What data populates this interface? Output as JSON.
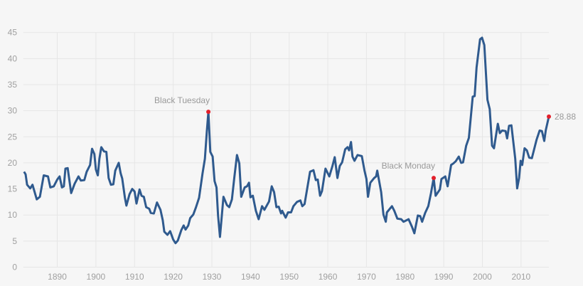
{
  "chart_data": {
    "type": "line",
    "title": "",
    "xlabel": "",
    "ylabel": "",
    "xlim": [
      1881.2,
      2017.2
    ],
    "ylim": [
      0,
      45
    ],
    "grid": true,
    "legend": "none",
    "x_ticks": [
      1890,
      1900,
      1910,
      1920,
      1930,
      1940,
      1950,
      1960,
      1970,
      1980,
      1990,
      2000,
      2010
    ],
    "y_ticks": [
      0,
      5,
      10,
      15,
      20,
      25,
      30,
      35,
      40,
      45
    ],
    "line_color": "#2f5a8e",
    "marker_color": "#e3202b",
    "series": [
      {
        "x": [
          1881.4,
          1881.8,
          1882.2,
          1883,
          1883.6,
          1884.7,
          1885.5,
          1886.5,
          1887.6,
          1888.2,
          1889.1,
          1890,
          1890.6,
          1891.2,
          1891.7,
          1892.1,
          1892.7,
          1893.6,
          1894.5,
          1895.5,
          1896.1,
          1897,
          1897.6,
          1898.5,
          1899,
          1899.6,
          1900,
          1900.5,
          1900.9,
          1901.4,
          1902.1,
          1902.7,
          1903.3,
          1903.9,
          1904.5,
          1905,
          1905.9,
          1906.4,
          1906.8,
          1907.5,
          1907.9,
          1908.7,
          1909.4,
          1910,
          1910.5,
          1911.3,
          1911.8,
          1912.4,
          1913,
          1913.8,
          1914.2,
          1915,
          1915.8,
          1916.7,
          1917.3,
          1917.7,
          1918.5,
          1919.2,
          1920,
          1920.6,
          1921.2,
          1922.1,
          1922.7,
          1923.2,
          1923.9,
          1924.4,
          1925.2,
          1925.9,
          1926.7,
          1927.6,
          1928.2,
          1928.7,
          1929.1,
          1929.6,
          1930.2,
          1930.7,
          1931.2,
          1931.6,
          1932.1,
          1933,
          1933.9,
          1934.5,
          1935.2,
          1935.8,
          1936.5,
          1937.1,
          1937.6,
          1938.5,
          1939.1,
          1939.6,
          1940,
          1940.6,
          1941.4,
          1942.1,
          1943,
          1943.6,
          1944.8,
          1945.5,
          1946.1,
          1946.7,
          1947.3,
          1947.9,
          1948.2,
          1949.1,
          1949.7,
          1950.5,
          1951.1,
          1952,
          1952.9,
          1953.4,
          1954,
          1955.4,
          1956.3,
          1956.9,
          1957.4,
          1958,
          1958.5,
          1959.4,
          1960.4,
          1961.2,
          1961.8,
          1962.5,
          1963.1,
          1963.7,
          1964.5,
          1965.1,
          1965.5,
          1966,
          1966.4,
          1966.9,
          1967.7,
          1968.8,
          1969.5,
          1970,
          1970.4,
          1971,
          1972,
          1972.5,
          1972.8,
          1973.8,
          1974.4,
          1975,
          1975.3,
          1976.6,
          1977.2,
          1978,
          1979,
          1979.6,
          1980.9,
          1981.8,
          1982.4,
          1983.3,
          1983.9,
          1984.4,
          1985.2,
          1986,
          1986.7,
          1987.4,
          1987.9,
          1989,
          1989.4,
          1990.4,
          1991,
          1991.9,
          1992.5,
          1993.1,
          1993.9,
          1994.5,
          1995,
          1995.8,
          1996.5,
          1997.5,
          1998,
          1998.5,
          1999.4,
          1999.9,
          2000.5,
          2001.3,
          2001.9,
          2002.5,
          2003,
          2004,
          2004.5,
          2005.1,
          2006,
          2006.4,
          2006.9,
          2007.5,
          2008.5,
          2009,
          2009.5,
          2009.9,
          2010.3,
          2010.9,
          2011.5,
          2012.1,
          2012.8,
          2014,
          2014.8,
          2015.4,
          2016,
          2016.4,
          2017.2
        ],
        "y": [
          18.3,
          17.8,
          15.8,
          15.1,
          15.8,
          13.0,
          13.5,
          17.6,
          17.4,
          15.3,
          15.5,
          16.8,
          17.4,
          15.3,
          15.5,
          18.9,
          19.0,
          14.2,
          16.0,
          17.4,
          16.6,
          16.7,
          18.3,
          19.6,
          22.7,
          21.7,
          18.7,
          17.6,
          20.8,
          23.0,
          22.2,
          22.1,
          17.1,
          15.8,
          15.9,
          18.5,
          20.0,
          18.0,
          17.0,
          13.3,
          11.8,
          14.0,
          15.0,
          14.5,
          12.2,
          14.9,
          13.7,
          13.5,
          11.5,
          11.2,
          10.4,
          10.3,
          12.4,
          11.0,
          9.0,
          6.8,
          6.2,
          6.9,
          5.3,
          4.6,
          5.1,
          7.1,
          8.0,
          7.2,
          8.0,
          9.4,
          10.1,
          11.5,
          13.3,
          18.0,
          20.8,
          26.0,
          29.8,
          22.1,
          21.2,
          16.5,
          15.3,
          9.9,
          5.8,
          13.5,
          11.9,
          11.5,
          13.0,
          17.1,
          21.5,
          19.9,
          13.5,
          15.3,
          15.5,
          16.2,
          13.4,
          13.7,
          10.8,
          9.2,
          11.7,
          11.0,
          12.6,
          15.5,
          14.4,
          11.5,
          11.6,
          10.3,
          10.8,
          9.5,
          10.5,
          10.5,
          11.7,
          12.5,
          12.8,
          11.7,
          12.1,
          18.3,
          18.6,
          16.7,
          16.8,
          13.7,
          14.6,
          18.9,
          17.4,
          19.4,
          21.1,
          17.1,
          19.4,
          20.1,
          22.6,
          23.0,
          22.4,
          24.0,
          21.2,
          20.4,
          21.5,
          21.3,
          18.5,
          16.9,
          13.5,
          16.2,
          17.1,
          17.4,
          18.5,
          14.4,
          10.1,
          8.7,
          10.5,
          11.7,
          10.8,
          9.3,
          9.2,
          8.7,
          9.2,
          7.7,
          6.5,
          9.9,
          9.8,
          8.7,
          10.4,
          11.7,
          14.2,
          17.1,
          13.7,
          14.9,
          16.9,
          17.4,
          15.5,
          19.6,
          19.9,
          20.3,
          21.2,
          20.0,
          20.1,
          23.3,
          24.8,
          32.7,
          32.8,
          38.3,
          43.7,
          44.0,
          42.6,
          32.1,
          30.3,
          23.3,
          22.8,
          27.5,
          25.7,
          26.2,
          26.1,
          24.7,
          27.1,
          27.2,
          20.8,
          15.1,
          17.1,
          20.4,
          19.6,
          22.8,
          22.4,
          21.0,
          20.9,
          24.4,
          26.2,
          26.1,
          24.2,
          26.3,
          28.88
        ]
      }
    ],
    "annotations": [
      {
        "label": "Black Tuesday",
        "x": 1929.1,
        "y": 29.8
      },
      {
        "label": "Black Monday",
        "x": 1987.4,
        "y": 17.1
      },
      {
        "label": "28.88",
        "x": 2017.2,
        "y": 28.88
      }
    ]
  }
}
